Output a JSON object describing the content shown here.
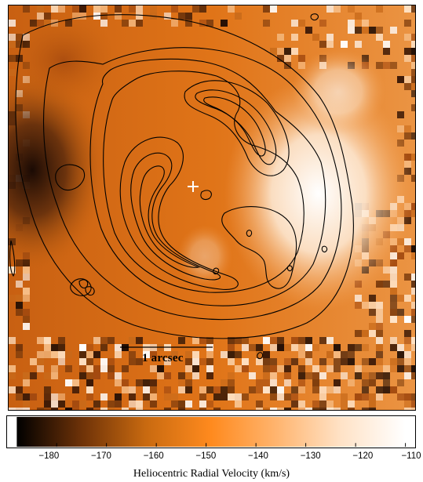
{
  "figure": {
    "scale_bar_label": "1 arcsec",
    "colorbar_label": "Heliocentric Radial Velocity (km/s)"
  },
  "chart_data": {
    "type": "heatmap",
    "title": "",
    "xlabel": "",
    "ylabel": "",
    "colorbar": {
      "label": "Heliocentric Radial Velocity (km/s)",
      "range": [
        -188,
        -110
      ],
      "ticks": [
        -180,
        -170,
        -160,
        -150,
        -140,
        -130,
        -120,
        -110
      ],
      "tick_labels": [
        "−180",
        "−170",
        "−160",
        "−150",
        "−140",
        "−130",
        "−120",
        "−110"
      ],
      "colormap": [
        "#000000",
        "#6e3208",
        "#c96a10",
        "#ff8a1e",
        "#ffb46e",
        "#ffe2c6",
        "#ffffff"
      ]
    },
    "scale_bar": {
      "label": "1 arcsec",
      "length_arcsec": 1
    },
    "overlay": "intensity contours (black lines)",
    "center_marker": "white cross",
    "velocity_features": [
      {
        "region": "east (left)",
        "velocity_kms": -185
      },
      {
        "region": "west (right)",
        "velocity_kms": -118
      },
      {
        "region": "background",
        "velocity_kms": -150
      }
    ],
    "grid": false
  }
}
